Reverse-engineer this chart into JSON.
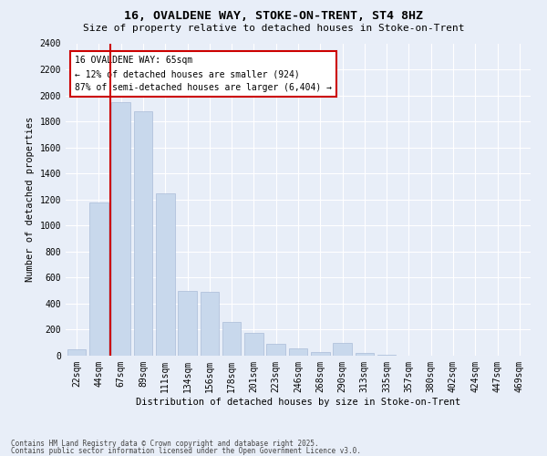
{
  "title1": "16, OVALDENE WAY, STOKE-ON-TRENT, ST4 8HZ",
  "title2": "Size of property relative to detached houses in Stoke-on-Trent",
  "xlabel": "Distribution of detached houses by size in Stoke-on-Trent",
  "ylabel": "Number of detached properties",
  "categories": [
    "22sqm",
    "44sqm",
    "67sqm",
    "89sqm",
    "111sqm",
    "134sqm",
    "156sqm",
    "178sqm",
    "201sqm",
    "223sqm",
    "246sqm",
    "268sqm",
    "290sqm",
    "313sqm",
    "335sqm",
    "357sqm",
    "380sqm",
    "402sqm",
    "424sqm",
    "447sqm",
    "469sqm"
  ],
  "values": [
    50,
    1175,
    1950,
    1875,
    1250,
    500,
    490,
    260,
    175,
    90,
    55,
    25,
    100,
    20,
    5,
    3,
    2,
    1,
    1,
    1,
    0
  ],
  "bar_color": "#c8d8ec",
  "bar_edgecolor": "#aabcd8",
  "marker_line_color": "#cc0000",
  "annotation_text": "16 OVALDENE WAY: 65sqm\n← 12% of detached houses are smaller (924)\n87% of semi-detached houses are larger (6,404) →",
  "annotation_box_color": "#ffffff",
  "annotation_box_edgecolor": "#cc0000",
  "ylim": [
    0,
    2400
  ],
  "yticks": [
    0,
    200,
    400,
    600,
    800,
    1000,
    1200,
    1400,
    1600,
    1800,
    2000,
    2200,
    2400
  ],
  "footnote1": "Contains HM Land Registry data © Crown copyright and database right 2025.",
  "footnote2": "Contains public sector information licensed under the Open Government Licence v3.0.",
  "bg_color": "#e8eef8",
  "plot_bg_color": "#e8eef8",
  "grid_color": "#ffffff",
  "title1_fontsize": 9.5,
  "title2_fontsize": 8,
  "tick_fontsize": 7,
  "ylabel_fontsize": 7.5,
  "xlabel_fontsize": 7.5,
  "annot_fontsize": 7,
  "footnote_fontsize": 5.5
}
